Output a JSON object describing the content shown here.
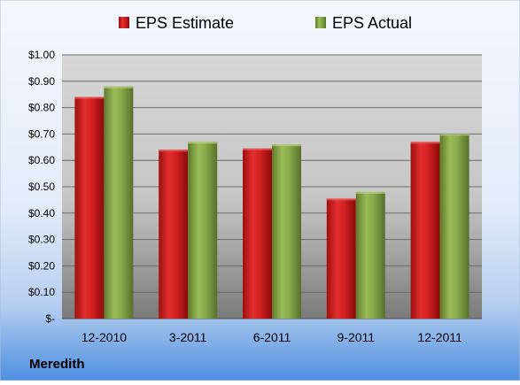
{
  "company": "Meredith",
  "chart_data": {
    "type": "bar",
    "title": "",
    "xlabel": "",
    "ylabel": "",
    "categories": [
      "12-2010",
      "3-2011",
      "6-2011",
      "9-2011",
      "12-2011"
    ],
    "series": [
      {
        "name": "EPS Estimate",
        "color": "#cc1a1a",
        "values": [
          0.84,
          0.64,
          0.645,
          0.455,
          0.67
        ]
      },
      {
        "name": "EPS Actual",
        "color": "#7a9a3a",
        "values": [
          0.88,
          0.67,
          0.66,
          0.48,
          0.7
        ]
      }
    ],
    "ylim": [
      0,
      1.0
    ],
    "yticks": [
      {
        "value": 0.0,
        "label": "$-"
      },
      {
        "value": 0.1,
        "label": "$0.10"
      },
      {
        "value": 0.2,
        "label": "$0.20"
      },
      {
        "value": 0.3,
        "label": "$0.30"
      },
      {
        "value": 0.4,
        "label": "$0.40"
      },
      {
        "value": 0.5,
        "label": "$0.50"
      },
      {
        "value": 0.6,
        "label": "$0.60"
      },
      {
        "value": 0.7,
        "label": "$0.70"
      },
      {
        "value": 0.8,
        "label": "$0.80"
      },
      {
        "value": 0.9,
        "label": "$0.90"
      },
      {
        "value": 1.0,
        "label": "$1.00"
      }
    ],
    "grid": true,
    "legend": "top-center"
  }
}
